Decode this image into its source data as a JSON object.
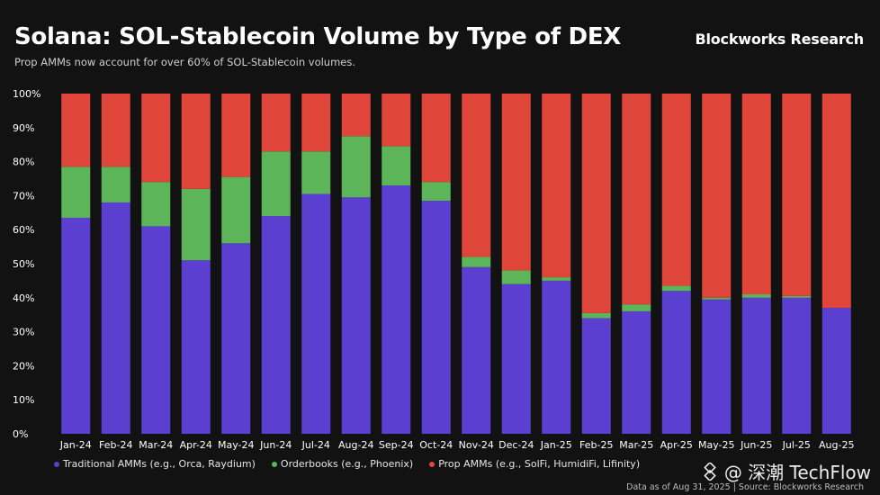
{
  "header": {
    "title": "Solana: SOL-Stablecoin Volume by Type of DEX",
    "subtitle": "Prop AMMs now account for over 60% of SOL-Stablecoin volumes.",
    "brand": "Blockworks Research"
  },
  "footer": {
    "note": "Data as of Aug 31, 2025 | Source: Blockworks Research"
  },
  "watermark": {
    "icon": "techflow-logo-icon",
    "text": "@ 深潮 TechFlow"
  },
  "colors": {
    "traditional": "#5A3FD1",
    "orderbooks": "#5DB55A",
    "prop": "#E0453A",
    "background": "#121212"
  },
  "chart_data": {
    "type": "bar",
    "stacked": true,
    "categories": [
      "Jan-24",
      "Feb-24",
      "Mar-24",
      "Apr-24",
      "May-24",
      "Jun-24",
      "Jul-24",
      "Aug-24",
      "Sep-24",
      "Oct-24",
      "Nov-24",
      "Dec-24",
      "Jan-25",
      "Feb-25",
      "Mar-25",
      "Apr-25",
      "May-25",
      "Jun-25",
      "Jul-25",
      "Aug-25"
    ],
    "series": [
      {
        "name": "Traditional AMMs (e.g., Orca, Raydium)",
        "values": [
          63.5,
          68,
          61,
          51,
          56,
          64,
          70.5,
          69.5,
          73,
          68.5,
          49,
          44,
          45,
          34,
          36,
          42,
          39.5,
          40,
          40,
          37
        ]
      },
      {
        "name": "Orderbooks (e.g., Phoenix)",
        "values": [
          15,
          10.5,
          13,
          21,
          19.5,
          19,
          12.5,
          18,
          11.5,
          5.5,
          3,
          4,
          1,
          1.5,
          2,
          1.5,
          0.5,
          1,
          0.5,
          0
        ]
      },
      {
        "name": "Prop AMMs (e.g., SolFi, HumidiFi, Lifinity)",
        "values": [
          21.5,
          21.5,
          26,
          28,
          24.5,
          17,
          17,
          12.5,
          15.5,
          26,
          48,
          52,
          54,
          64.5,
          62,
          56.5,
          60,
          59,
          59.5,
          63
        ]
      }
    ],
    "y_ticks": [
      "0%",
      "10%",
      "20%",
      "30%",
      "40%",
      "50%",
      "60%",
      "70%",
      "80%",
      "90%",
      "100%"
    ],
    "ylim": [
      0,
      100
    ],
    "xlabel": "",
    "ylabel": "",
    "grid": false,
    "legend_position": "bottom-left"
  }
}
